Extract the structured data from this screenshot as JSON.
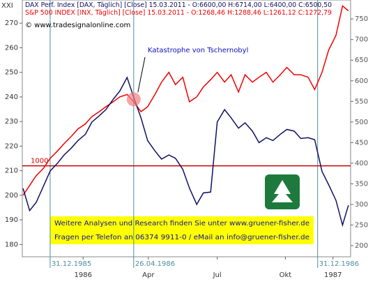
{
  "chart_data": {
    "type": "line",
    "corner_label": "XXI",
    "legend_texts": [
      "DAX Perf. Index [DAX, Täglich] [Close] 15.03.2011 - O:6600,00 H:6714,00 L:6400,00 C:6500,50",
      "S&P 500 INDEX [INX, Täglich] [Close] 15.03.2011 - O:1268,46 H:1288,46 L:1261,12 C:1272,79"
    ],
    "copyright": "© www.tradesignalonline.com",
    "annotation": "Katastrophe von Tschernobyl",
    "info_lines": [
      "Weitere Analysen und Research finden Sie unter www.gruener-fisher.de",
      "Fragen per Telefon an 06374 9911-0 / eMail an info@gruener-fisher.de"
    ],
    "x": [
      -37,
      -28,
      -19,
      -9,
      0,
      10,
      19,
      29,
      38,
      48,
      57,
      67,
      76,
      86,
      95,
      105,
      114,
      124,
      133,
      143,
      152,
      162,
      171,
      181,
      190,
      200,
      209,
      219,
      228,
      238,
      247,
      257,
      266,
      276,
      285,
      295,
      304,
      314,
      323,
      333,
      342,
      352,
      361,
      371,
      380,
      390,
      399,
      407
    ],
    "series": [
      {
        "name": "S&P 500",
        "color": "#ee0000",
        "values": [
          200,
          204,
          208,
          211,
          215,
          218,
          221,
          224,
          227,
          229,
          232,
          234,
          236,
          238,
          240,
          241,
          238,
          234,
          236,
          241,
          246,
          250,
          245,
          248,
          238,
          240,
          244,
          247,
          250,
          246,
          249,
          242,
          249,
          246,
          248,
          250,
          246,
          249,
          252,
          249,
          249,
          248,
          243,
          250,
          259,
          265,
          277,
          275
        ]
      },
      {
        "name": "DAX",
        "color": "#101060",
        "axis": "y2",
        "values": [
          339,
          285,
          305,
          345,
          381,
          400,
          420,
          437,
          455,
          470,
          500,
          515,
          530,
          555,
          575,
          608,
          560,
          510,
          455,
          430,
          410,
          420,
          412,
          385,
          340,
          300,
          328,
          330,
          500,
          530,
          510,
          485,
          498,
          478,
          450,
          462,
          455,
          470,
          482,
          478,
          460,
          462,
          457,
          380,
          348,
          310,
          250,
          298
        ]
      }
    ],
    "xlim": [
      -38,
      410
    ],
    "xticks": [
      {
        "value": 45,
        "label": "1986"
      },
      {
        "value": 134,
        "label": "Apr"
      },
      {
        "value": 228,
        "label": "Jul"
      },
      {
        "value": 321,
        "label": "Okt"
      },
      {
        "value": 386,
        "label": "1987"
      }
    ],
    "event_lines": [
      {
        "value": 0,
        "label": "31.12.1985"
      },
      {
        "value": 114,
        "label": "26.04.1986"
      },
      {
        "value": 365,
        "label": "31.12.1986"
      }
    ],
    "ylim": [
      175,
      279.4
    ],
    "yticks": [
      180,
      190,
      200,
      210,
      220,
      230,
      240,
      250,
      260,
      270
    ],
    "y2lim": [
      173,
      796
    ],
    "y2ticks": [
      200,
      250,
      300,
      350,
      400,
      450,
      500,
      550,
      600,
      650,
      700,
      750
    ],
    "reference_line": {
      "value": 212,
      "label": "1000",
      "color": "#cc0000"
    },
    "highlight": {
      "x": 114,
      "y": 239
    }
  }
}
